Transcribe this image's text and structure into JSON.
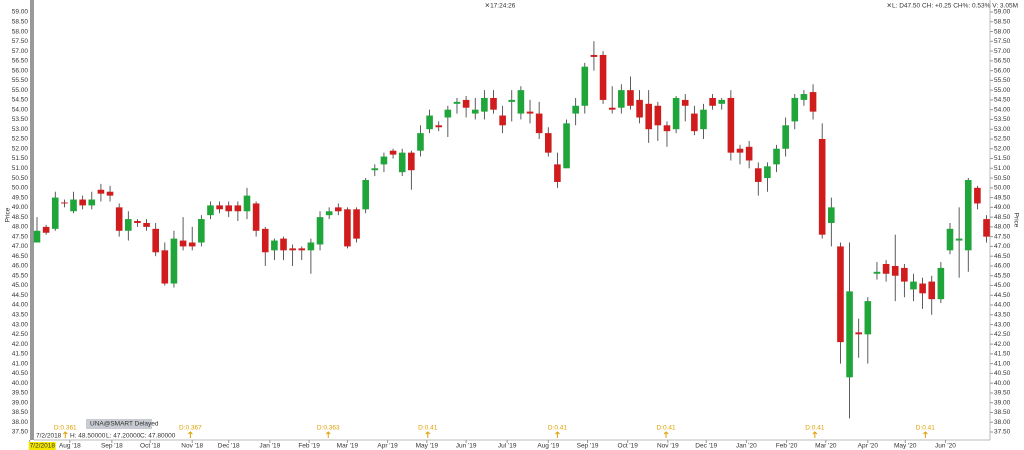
{
  "chart_data": {
    "type": "candlestick",
    "clock": "✕17:24:26",
    "quote": "✕L: D47.50 CH: +0.25 CH%: 0.53% V: 3.05M",
    "y_label": "Price",
    "symbol": "UNA@SMART Delayed",
    "info": {
      "date": "7/2/2018",
      "high": "H: 48.50000",
      "low": "L: 47.20000",
      "close": "C: 47.80000"
    },
    "up_color": "#1fa53a",
    "down_color": "#d01c1c",
    "open": [
      47.2,
      48.0,
      47.9,
      49.25,
      48.8,
      49.4,
      49.1,
      49.9,
      49.8,
      49.0,
      47.8,
      48.3,
      48.2,
      47.9,
      46.8,
      45.1,
      47.3,
      47.2,
      47.2,
      48.6,
      49.1,
      49.1,
      49.1,
      48.8,
      49.2,
      47.9,
      46.8,
      47.4,
      46.9,
      46.9,
      46.8,
      47.1,
      48.6,
      49.0,
      48.9,
      48.9,
      48.9,
      50.9,
      51.2,
      51.9,
      50.8,
      51.8,
      51.9,
      53.0,
      53.2,
      53.6,
      54.3,
      54.5,
      53.8,
      53.9,
      54.6,
      53.7,
      54.4,
      53.8,
      53.9,
      53.8,
      52.8,
      51.2,
      51.0,
      53.8,
      54.2,
      56.8,
      56.8,
      54.1,
      54.1,
      55.0,
      54.5,
      54.3,
      54.2,
      53.2,
      53.0,
      54.5,
      53.8,
      53.0,
      54.6,
      54.3,
      54.6,
      52.0,
      52.1,
      51.0,
      50.5,
      51.2,
      52.0,
      53.4,
      54.5,
      54.9,
      52.5,
      48.2,
      47.0,
      40.3,
      42.6,
      42.5,
      45.6,
      46.1,
      46.0,
      45.9,
      44.8,
      45.1,
      45.2,
      44.3,
      46.8,
      47.3,
      46.8,
      50.0,
      48.4
    ],
    "high": [
      48.5,
      48.1,
      49.8,
      49.4,
      49.8,
      49.6,
      49.8,
      50.2,
      50.1,
      49.2,
      48.8,
      48.4,
      48.4,
      48.2,
      47.2,
      47.8,
      48.5,
      48.0,
      48.6,
      49.3,
      49.3,
      49.3,
      49.3,
      50.0,
      49.3,
      48.0,
      47.4,
      47.5,
      47.1,
      47.0,
      47.4,
      48.8,
      49.0,
      49.2,
      49.0,
      49.0,
      50.5,
      51.2,
      51.8,
      52.0,
      52.0,
      51.9,
      53.2,
      54.0,
      53.4,
      54.2,
      54.6,
      54.7,
      54.6,
      55.0,
      55.0,
      54.2,
      55.0,
      55.2,
      54.5,
      54.4,
      53.1,
      51.8,
      53.5,
      54.6,
      56.4,
      57.5,
      57.0,
      55.2,
      55.3,
      55.7,
      55.0,
      55.0,
      54.4,
      53.4,
      54.7,
      54.8,
      54.2,
      54.3,
      54.8,
      54.6,
      55.0,
      52.2,
      52.4,
      51.3,
      51.3,
      52.2,
      53.6,
      54.8,
      55.0,
      55.3,
      53.3,
      49.5,
      47.2,
      47.2,
      43.3,
      44.4,
      46.2,
      46.3,
      47.6,
      46.1,
      45.6,
      45.4,
      45.5,
      46.2,
      48.2,
      49.0,
      50.5,
      50.1,
      48.6
    ],
    "low": [
      47.2,
      47.6,
      47.8,
      49.0,
      48.7,
      48.9,
      48.9,
      49.3,
      49.3,
      47.5,
      47.3,
      48.0,
      47.8,
      46.5,
      45.0,
      44.9,
      46.8,
      46.8,
      47.0,
      48.4,
      48.7,
      48.5,
      48.3,
      48.4,
      47.5,
      46.0,
      46.3,
      46.3,
      46.0,
      46.3,
      45.6,
      46.8,
      48.4,
      48.6,
      46.9,
      47.2,
      48.7,
      50.6,
      50.8,
      51.5,
      50.6,
      49.9,
      51.6,
      52.8,
      52.9,
      52.6,
      53.8,
      53.6,
      53.5,
      53.5,
      53.8,
      52.8,
      53.4,
      53.5,
      53.3,
      52.5,
      51.6,
      50.0,
      51.0,
      53.2,
      53.8,
      56.0,
      54.3,
      53.8,
      53.8,
      54.0,
      53.3,
      52.3,
      52.4,
      52.1,
      52.8,
      53.4,
      52.7,
      52.5,
      54.0,
      54.0,
      51.4,
      51.2,
      51.0,
      49.6,
      49.8,
      50.8,
      51.6,
      53.0,
      54.2,
      53.5,
      47.4,
      47.0,
      41.0,
      38.2,
      41.3,
      41.0,
      45.3,
      45.2,
      44.2,
      44.4,
      44.2,
      43.8,
      43.5,
      44.1,
      46.6,
      45.4,
      45.7,
      48.9,
      47.2
    ],
    "close": [
      47.8,
      47.7,
      49.5,
      49.2,
      49.4,
      49.1,
      49.4,
      49.7,
      49.6,
      47.8,
      48.4,
      48.2,
      48.0,
      46.7,
      45.1,
      47.4,
      47.0,
      47.0,
      48.4,
      49.1,
      48.9,
      48.8,
      48.8,
      49.6,
      47.8,
      46.7,
      47.3,
      46.8,
      46.8,
      46.8,
      47.2,
      48.5,
      48.8,
      48.8,
      47.0,
      47.4,
      50.4,
      51.0,
      51.6,
      51.7,
      51.8,
      50.9,
      52.8,
      53.7,
      53.1,
      54.0,
      54.4,
      54.1,
      54.0,
      54.6,
      54.0,
      53.2,
      54.5,
      55.0,
      53.8,
      52.8,
      51.8,
      50.3,
      53.3,
      54.2,
      56.2,
      56.7,
      54.5,
      54.0,
      55.0,
      54.2,
      53.6,
      53.0,
      53.2,
      52.9,
      54.6,
      54.2,
      52.9,
      54.0,
      54.2,
      54.5,
      51.8,
      51.8,
      51.4,
      50.3,
      51.1,
      52.0,
      53.2,
      54.6,
      54.8,
      53.9,
      47.6,
      49.0,
      42.1,
      44.7,
      42.5,
      44.2,
      45.7,
      45.6,
      45.5,
      45.2,
      45.2,
      44.6,
      44.3,
      45.9,
      47.9,
      47.4,
      50.4,
      49.2,
      47.5
    ],
    "ylim": [
      37.25,
      59.25
    ],
    "yticks": [
      {
        "value": 37.5,
        "label": "37.50"
      },
      {
        "value": 38,
        "label": "38.00"
      },
      {
        "value": 38.5,
        "label": "38.50"
      },
      {
        "value": 39,
        "label": "39.00"
      },
      {
        "value": 39.5,
        "label": "39.50"
      },
      {
        "value": 40,
        "label": "40.00"
      },
      {
        "value": 40.5,
        "label": "40.50"
      },
      {
        "value": 41,
        "label": "41.00"
      },
      {
        "value": 41.5,
        "label": "41.50"
      },
      {
        "value": 42,
        "label": "42.00"
      },
      {
        "value": 42.5,
        "label": "42.50"
      },
      {
        "value": 43,
        "label": "43.00"
      },
      {
        "value": 43.5,
        "label": "43.50"
      },
      {
        "value": 44,
        "label": "44.00"
      },
      {
        "value": 44.5,
        "label": "44.50"
      },
      {
        "value": 45,
        "label": "45.00"
      },
      {
        "value": 45.5,
        "label": "45.50"
      },
      {
        "value": 46,
        "label": "46.00"
      },
      {
        "value": 46.5,
        "label": "46.50"
      },
      {
        "value": 47,
        "label": "47.00"
      },
      {
        "value": 47.5,
        "label": "47.50"
      },
      {
        "value": 48,
        "label": "48.00"
      },
      {
        "value": 48.5,
        "label": "48.50"
      },
      {
        "value": 49,
        "label": "49.00"
      },
      {
        "value": 49.5,
        "label": "49.50"
      },
      {
        "value": 50,
        "label": "50.00"
      },
      {
        "value": 50.5,
        "label": "50.50"
      },
      {
        "value": 51,
        "label": "51.00"
      },
      {
        "value": 51.5,
        "label": "51.50"
      },
      {
        "value": 52,
        "label": "52.00"
      },
      {
        "value": 52.5,
        "label": "52.50"
      },
      {
        "value": 53,
        "label": "53.00"
      },
      {
        "value": 53.5,
        "label": "53.50"
      },
      {
        "value": 54,
        "label": "54.00"
      },
      {
        "value": 54.5,
        "label": "54.50"
      },
      {
        "value": 55,
        "label": "55.00"
      },
      {
        "value": 55.5,
        "label": "55.50"
      },
      {
        "value": 56,
        "label": "56.00"
      },
      {
        "value": 56.5,
        "label": "56.50"
      },
      {
        "value": 57,
        "label": "57.00"
      },
      {
        "value": 57.5,
        "label": "57.50"
      },
      {
        "value": 58,
        "label": "58.00"
      },
      {
        "value": 58.5,
        "label": "58.50"
      },
      {
        "value": 59,
        "label": "59.00"
      }
    ],
    "xticks": [
      {
        "value": -0.8,
        "label": "7/2/2018"
      },
      {
        "value": 3.6,
        "label": "Aug '18"
      },
      {
        "value": 8.2,
        "label": "Sep '18"
      },
      {
        "value": 12.4,
        "label": "Oct '18"
      },
      {
        "value": 17,
        "label": "Nov '18"
      },
      {
        "value": 21,
        "label": "Dec '18"
      },
      {
        "value": 25.5,
        "label": "Jan '19"
      },
      {
        "value": 29.8,
        "label": "Feb '19"
      },
      {
        "value": 34,
        "label": "Mar '19"
      },
      {
        "value": 38.4,
        "label": "Apr '19"
      },
      {
        "value": 42.7,
        "label": "May '19"
      },
      {
        "value": 47,
        "label": "Jun '19"
      },
      {
        "value": 51.5,
        "label": "Jul '19"
      },
      {
        "value": 56,
        "label": "Aug '19"
      },
      {
        "value": 60.3,
        "label": "Sep '19"
      },
      {
        "value": 64.7,
        "label": "Oct '19"
      },
      {
        "value": 69.1,
        "label": "Nov '19"
      },
      {
        "value": 73.3,
        "label": "Dec '19"
      },
      {
        "value": 77.7,
        "label": "Jan '20"
      },
      {
        "value": 82.1,
        "label": "Feb '20"
      },
      {
        "value": 86.4,
        "label": "Mar '20"
      },
      {
        "value": 91,
        "label": "Apr '20"
      },
      {
        "value": 95.1,
        "label": "May '20"
      },
      {
        "value": 99.5,
        "label": "Jun '20"
      }
    ],
    "dividends": [
      {
        "x": 3.1,
        "label": "D:0.361"
      },
      {
        "x": 16.8,
        "label": "D:0.367"
      },
      {
        "x": 31.9,
        "label": "D:0.363"
      },
      {
        "x": 42.8,
        "label": "D:0.41"
      },
      {
        "x": 57,
        "label": "D:0.41"
      },
      {
        "x": 68.9,
        "label": "D:0.41"
      },
      {
        "x": 85.2,
        "label": "D:0.41"
      },
      {
        "x": 97.3,
        "label": "D:0.41"
      }
    ]
  }
}
